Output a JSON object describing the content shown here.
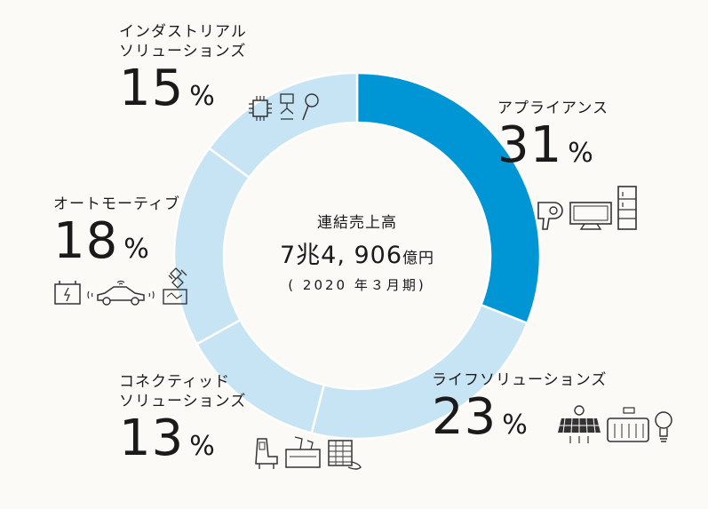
{
  "chart_data": {
    "type": "pie",
    "center": {
      "title": "連結売上高",
      "total_value": "7兆4, 906",
      "total_unit": "億円",
      "period": "( 2020 年３月期)"
    },
    "segments": [
      {
        "name": "アプライアンス",
        "value": 31,
        "unit": "%",
        "color": "#0096d6",
        "icons": [
          "hair-dryer-icon",
          "tv-icon",
          "refrigerator-icon"
        ]
      },
      {
        "name": "ライフソリューションズ",
        "value": 23,
        "unit": "%",
        "color": "#c6e4f3",
        "icons": [
          "solar-panel-icon",
          "kitchen-icon",
          "light-bulb-icon"
        ]
      },
      {
        "name": "コネクティッド\nソリューションズ",
        "value": 13,
        "unit": "%",
        "color": "#c6e4f3",
        "icons": [
          "aircraft-seat-icon",
          "mobile-device-icon",
          "warehouse-icon"
        ]
      },
      {
        "name": "オートモーティブ",
        "value": 18,
        "unit": "%",
        "color": "#c6e4f3",
        "icons": [
          "battery-icon",
          "connected-car-icon",
          "satellite-icon",
          "navigation-unit-icon"
        ]
      },
      {
        "name": "インダストリアル\nソリューションズ",
        "value": 15,
        "unit": "%",
        "color": "#c6e4f3",
        "icons": [
          "chip-icon",
          "robot-icon",
          "sensor-icon"
        ]
      }
    ]
  }
}
